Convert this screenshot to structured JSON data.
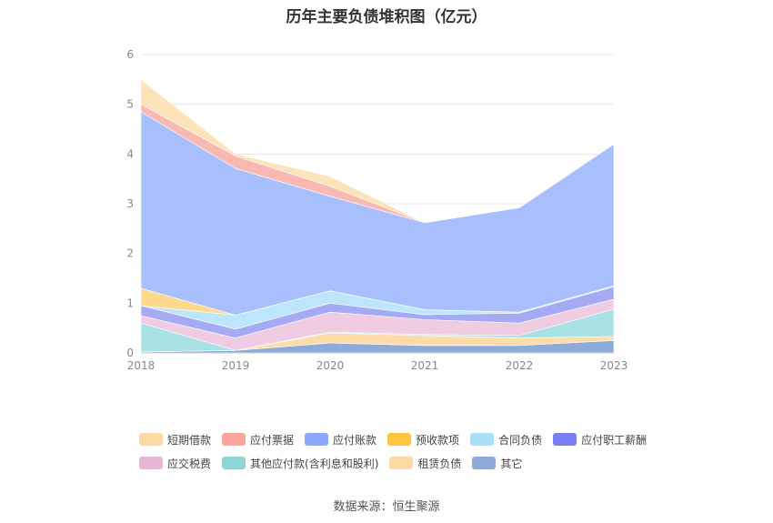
{
  "chart_data": {
    "type": "area",
    "stacked": true,
    "title": "历年主要负债堆积图（亿元）",
    "x": [
      "2018",
      "2019",
      "2020",
      "2021",
      "2022",
      "2023"
    ],
    "ylim": [
      0,
      6
    ],
    "yticks": [
      "0",
      "1",
      "2",
      "3",
      "4",
      "5",
      "6"
    ],
    "grid": true,
    "legend_position": "bottom",
    "series": [
      {
        "name": "其它",
        "color": "#8eaad8",
        "values": [
          0.02,
          0.05,
          0.2,
          0.15,
          0.15,
          0.25
        ]
      },
      {
        "name": "租赁负债",
        "color": "#fddcaa",
        "values": [
          0.0,
          0.0,
          0.2,
          0.2,
          0.15,
          0.08
        ]
      },
      {
        "name": "其他应付款(含利息和股利)",
        "color": "#a8e2e2",
        "values": [
          0.58,
          0.0,
          0.02,
          0.02,
          0.05,
          0.55
        ]
      },
      {
        "name": "应交税费",
        "color": "#f0cce3",
        "values": [
          0.15,
          0.25,
          0.4,
          0.3,
          0.25,
          0.2
        ]
      },
      {
        "name": "应付职工薪酬",
        "color": "#a6a9f4",
        "values": [
          0.2,
          0.18,
          0.18,
          0.1,
          0.2,
          0.25
        ]
      },
      {
        "name": "合同负债",
        "color": "#bde6fc",
        "values": [
          0.0,
          0.28,
          0.25,
          0.1,
          0.02,
          0.02
        ]
      },
      {
        "name": "预收款项",
        "color": "#fed98c",
        "values": [
          0.35,
          0.0,
          0.0,
          0.0,
          0.0,
          0.0
        ]
      },
      {
        "name": "应付账款",
        "color": "#a7bffc",
        "values": [
          3.55,
          2.95,
          1.9,
          1.75,
          2.1,
          2.85
        ]
      },
      {
        "name": "应付票据",
        "color": "#f9b9b3",
        "values": [
          0.15,
          0.25,
          0.2,
          0.0,
          0.0,
          0.0
        ]
      },
      {
        "name": "短期借款",
        "color": "#fde3b9",
        "values": [
          0.5,
          0.04,
          0.2,
          0.0,
          0.0,
          0.0
        ]
      }
    ]
  },
  "legend": {
    "row1": [
      {
        "label": "短期借款",
        "color": "#fdd9a3"
      },
      {
        "label": "应付票据",
        "color": "#f9a59c"
      },
      {
        "label": "应付账款",
        "color": "#8aa8fb"
      },
      {
        "label": "预收款项",
        "color": "#fdc53d"
      },
      {
        "label": "合同负债",
        "color": "#a9def9"
      },
      {
        "label": "应付职工薪酬",
        "color": "#7b7ef0"
      }
    ],
    "row2": [
      {
        "label": "应交税费",
        "color": "#e9b5d5"
      },
      {
        "label": "其他应付款(含利息和股利)",
        "color": "#8ed6d6"
      },
      {
        "label": "租赁负债",
        "color": "#fdd9a3"
      },
      {
        "label": "其它",
        "color": "#8eaad8"
      }
    ]
  },
  "footer": "数据来源：恒生聚源"
}
